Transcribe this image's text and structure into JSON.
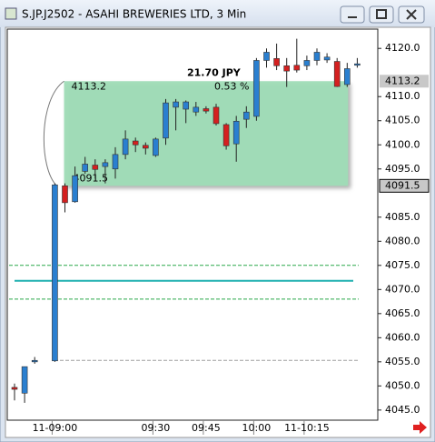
{
  "chart_data": {
    "type": "candlestick",
    "title": "S.JP.J2502 - ASAHI BREWERIES LTD, 3 Min",
    "categories": [
      null,
      null,
      null,
      null,
      "11-09:00",
      null,
      null,
      null,
      null,
      null,
      null,
      null,
      null,
      null,
      "09:30",
      null,
      null,
      null,
      null,
      "09:45",
      null,
      null,
      null,
      null,
      "10:00",
      null,
      null,
      null,
      null,
      "11-10:15",
      null,
      null,
      null,
      null,
      null
    ],
    "open": [
      4049.7,
      4048.5,
      4055,
      null,
      4055.2,
      4091.5,
      4088.2,
      4094.5,
      4095.8,
      4095.5,
      4095,
      4098,
      4100.8,
      4099.9,
      4097.8,
      4101.4,
      4107.8,
      4107.4,
      4106.8,
      4107.5,
      4107.8,
      4104.2,
      4100.2,
      4105.3,
      4105.9,
      4117.5,
      4117.9,
      4116.4,
      4116.5,
      4116.4,
      4117.5,
      4117.6,
      4117.3,
      4112.5,
      4116.5
    ],
    "high": [
      4050.5,
      4054,
      4056,
      null,
      4092,
      4092,
      4095.5,
      4097.5,
      4097,
      4097,
      4099.5,
      4103,
      4101.5,
      4100.5,
      4101.5,
      4109.5,
      4109.5,
      4109.2,
      4108.9,
      4108,
      4108.5,
      4104.5,
      4106,
      4108,
      4118,
      4120,
      4121,
      4118,
      4122,
      4118.5,
      4120,
      4119,
      4118,
      4117,
      4118
    ],
    "low": [
      4047,
      4046.5,
      4054.6,
      null,
      4055,
      4086,
      4088,
      4094,
      4093,
      4092,
      4093,
      4097,
      4098.5,
      4098,
      4097.5,
      4100,
      4103,
      4104.5,
      4106,
      4106.5,
      4104,
      4099,
      4096.5,
      4103.5,
      4105,
      4116,
      4115.5,
      4112,
      4115,
      4115.5,
      4116.5,
      4117,
      4112,
      4112,
      4116
    ],
    "close": [
      4049.3,
      4054,
      4055.3,
      null,
      4091.7,
      4088,
      4093.6,
      4096,
      4094.9,
      4096.3,
      4098,
      4101.2,
      4100,
      4099.3,
      4101.2,
      4108.7,
      4108.9,
      4108.9,
      4107.8,
      4107,
      4104.4,
      4099.8,
      4104.9,
      4106.8,
      4117.5,
      4119.2,
      4116.4,
      4115.3,
      4115.5,
      4117.5,
      4119.2,
      4118.2,
      4112.1,
      4115.8,
      4116.8
    ],
    "up_color": "#2a7fd0",
    "down_color": "#d42020",
    "ylim": [
      4042.9,
      4124
    ],
    "yticks": [
      {
        "value": 4045,
        "label": "4045.0"
      },
      {
        "value": 4050,
        "label": "4050.0"
      },
      {
        "value": 4055,
        "label": "4055.0"
      },
      {
        "value": 4060,
        "label": "4060.0"
      },
      {
        "value": 4065,
        "label": "4065.0"
      },
      {
        "value": 4070,
        "label": "4070.0"
      },
      {
        "value": 4075,
        "label": "4075.0"
      },
      {
        "value": 4080,
        "label": "4080.0"
      },
      {
        "value": 4085,
        "label": "4085.0"
      },
      {
        "value": 4095,
        "label": "4095.0"
      },
      {
        "value": 4100,
        "label": "4100.0"
      },
      {
        "value": 4105,
        "label": "4105.0"
      },
      {
        "value": 4110,
        "label": "4110.0"
      },
      {
        "value": 4120,
        "label": "4120.0"
      }
    ],
    "levels": [
      {
        "value": 4075,
        "color": "#2aa84a",
        "style": "dashed"
      },
      {
        "value": 4071.8,
        "color": "#20b0b0",
        "style": "solid"
      },
      {
        "value": 4068,
        "color": "#2aa84a",
        "style": "dashed"
      },
      {
        "value": 4055.3,
        "color": "#a0a0a0",
        "style": "dashed"
      }
    ],
    "box": {
      "top": 4113.2,
      "bottom": 4091.5,
      "change_label": "21.70 JPY",
      "percent_label": "0.53 %",
      "color": "#9fdcb6"
    }
  }
}
